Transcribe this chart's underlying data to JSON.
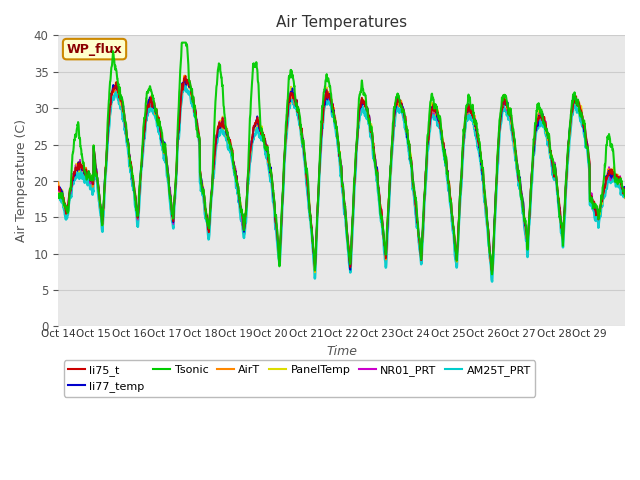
{
  "title": "Air Temperatures",
  "xlabel": "Time",
  "ylabel": "Air Temperature (C)",
  "ylim": [
    0,
    40
  ],
  "yticks": [
    0,
    5,
    10,
    15,
    20,
    25,
    30,
    35,
    40
  ],
  "background_color": "#e8e8e8",
  "fig_bg": "#ffffff",
  "series": {
    "AM25T_PRT": {
      "color": "#00cccc",
      "lw": 1.8,
      "zorder": 2
    },
    "NR01_PRT": {
      "color": "#cc00cc",
      "lw": 1.2,
      "zorder": 3
    },
    "PanelTemp": {
      "color": "#dddd00",
      "lw": 1.2,
      "zorder": 2
    },
    "AirT": {
      "color": "#ff8800",
      "lw": 1.2,
      "zorder": 3
    },
    "li77_temp": {
      "color": "#0000cc",
      "lw": 1.2,
      "zorder": 3
    },
    "li75_t": {
      "color": "#cc0000",
      "lw": 1.2,
      "zorder": 3
    },
    "Tsonic": {
      "color": "#00cc00",
      "lw": 1.5,
      "zorder": 4
    }
  },
  "legend_order": [
    "li75_t",
    "li77_temp",
    "Tsonic",
    "AirT",
    "PanelTemp",
    "NR01_PRT",
    "AM25T_PRT"
  ],
  "legend_colors": {
    "li75_t": "#cc0000",
    "li77_temp": "#0000cc",
    "Tsonic": "#00cc00",
    "AirT": "#ff8800",
    "PanelTemp": "#dddd00",
    "NR01_PRT": "#cc00cc",
    "AM25T_PRT": "#00cccc"
  },
  "legend_label": "WP_flux",
  "legend_bg": "#ffffcc",
  "legend_border": "#cc8800",
  "x_tick_labels": [
    "Oct 14",
    "Oct 15",
    "Oct 16",
    "Oct 17",
    "Oct 18",
    "Oct 19",
    "Oct 20",
    "Oct 21",
    "Oct 22",
    "Oct 23",
    "Oct 24",
    "Oct 25",
    "Oct 26",
    "Oct 27",
    "Oct 28",
    "Oct 29"
  ],
  "n_days": 16,
  "pts_per_day": 144,
  "day_max_temps": [
    22,
    33,
    31,
    34,
    28,
    28,
    32,
    32,
    31,
    31,
    30,
    30,
    31,
    29,
    31,
    21
  ],
  "day_min_temps": [
    16,
    14,
    15,
    14,
    13,
    13,
    9,
    8,
    8,
    9,
    9,
    9,
    7,
    11,
    12,
    15
  ],
  "tsonic_extra": [
    5,
    4,
    2,
    7,
    8,
    9,
    3,
    2,
    2,
    1,
    2,
    1,
    1,
    1,
    1,
    5
  ]
}
